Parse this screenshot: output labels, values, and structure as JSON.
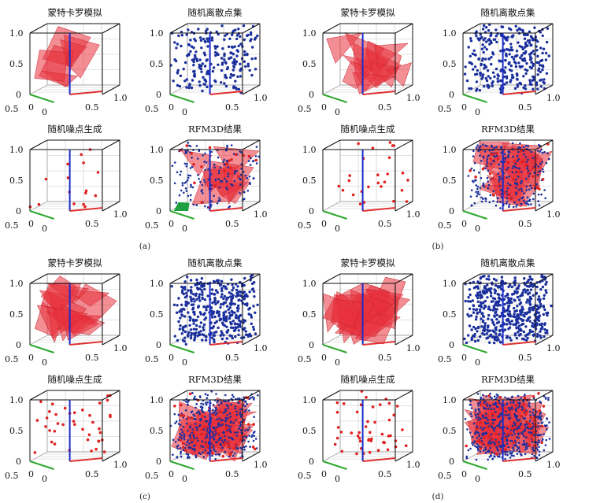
{
  "figure_title": "",
  "colors": {
    "shape_fill": "#e8323c",
    "shape_stroke": "#c8202a",
    "point_blue": "#1a2f9c",
    "point_red": "#e02020",
    "axis_z": "#1a2cc8",
    "axis_x": "#2ea82e",
    "axis_y": "#e03030",
    "patch_green": "#1ea040"
  },
  "tick_labels": {
    "z_top": "1.0",
    "z_mid": "0.5",
    "z_bottom": "0",
    "x_left": "0.5",
    "x_origin": "0",
    "y_origin": "0",
    "y_mid": "0.5",
    "y_right": "1.0"
  },
  "groups": [
    {
      "label": "(a)",
      "panels": [
        {
          "title": "蒙特卡罗模拟",
          "kind": "polygons",
          "density": 6
        },
        {
          "title": "随机离散点集",
          "kind": "blue_points",
          "density": 220
        },
        {
          "title": "随机噪点生成",
          "kind": "red_points",
          "density": 16
        },
        {
          "title": "RFM3D结果",
          "kind": "result",
          "density": 160,
          "green_patch": true
        }
      ]
    },
    {
      "label": "(b)",
      "panels": [
        {
          "title": "蒙特卡罗模拟",
          "kind": "polygons",
          "density": 10
        },
        {
          "title": "随机离散点集",
          "kind": "blue_points",
          "density": 320
        },
        {
          "title": "随机噪点生成",
          "kind": "red_points",
          "density": 26
        },
        {
          "title": "RFM3D结果",
          "kind": "result",
          "density": 260,
          "green_patch": false
        }
      ]
    },
    {
      "label": "(c)",
      "panels": [
        {
          "title": "蒙特卡罗模拟",
          "kind": "polygons",
          "density": 14
        },
        {
          "title": "随机离散点集",
          "kind": "blue_points",
          "density": 420
        },
        {
          "title": "随机噪点生成",
          "kind": "red_points",
          "density": 40
        },
        {
          "title": "RFM3D结果",
          "kind": "result",
          "density": 380,
          "green_patch": false
        }
      ]
    },
    {
      "label": "(d)",
      "panels": [
        {
          "title": "蒙特卡罗模拟",
          "kind": "polygons",
          "density": 18
        },
        {
          "title": "随机离散点集",
          "kind": "blue_points",
          "density": 520
        },
        {
          "title": "随机噪点生成",
          "kind": "red_points",
          "density": 48
        },
        {
          "title": "RFM3D结果",
          "kind": "result",
          "density": 460,
          "green_patch": false
        }
      ]
    }
  ]
}
